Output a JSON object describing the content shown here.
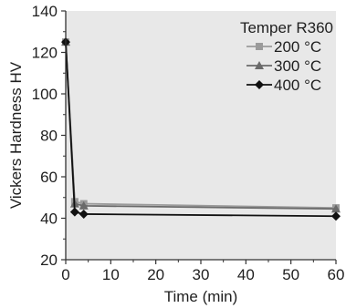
{
  "chart_data": {
    "type": "line",
    "xlabel": "Time (min)",
    "ylabel": "Vickers Hardness HV",
    "xlim": [
      0,
      60
    ],
    "ylim": [
      20,
      140
    ],
    "xticks": [
      0,
      10,
      20,
      30,
      40,
      50,
      60
    ],
    "yticks": [
      20,
      40,
      60,
      80,
      100,
      120,
      140
    ],
    "grid": false,
    "legend_position": "top-right",
    "legend_title": "Temper R360",
    "plot_background": "#e8e8e8",
    "series": [
      {
        "name": "200 °C",
        "color": "#9a9a9a",
        "marker": "square",
        "x": [
          0,
          2,
          4,
          60
        ],
        "y": [
          125,
          48,
          47,
          45
        ]
      },
      {
        "name": "300 °C",
        "color": "#6a6a6a",
        "marker": "triangle",
        "x": [
          0,
          2,
          4,
          60
        ],
        "y": [
          125,
          47,
          46,
          44.5
        ]
      },
      {
        "name": "400 °C",
        "color": "#111111",
        "marker": "diamond",
        "x": [
          0,
          2,
          4,
          60
        ],
        "y": [
          125,
          43,
          42,
          41
        ]
      }
    ]
  }
}
